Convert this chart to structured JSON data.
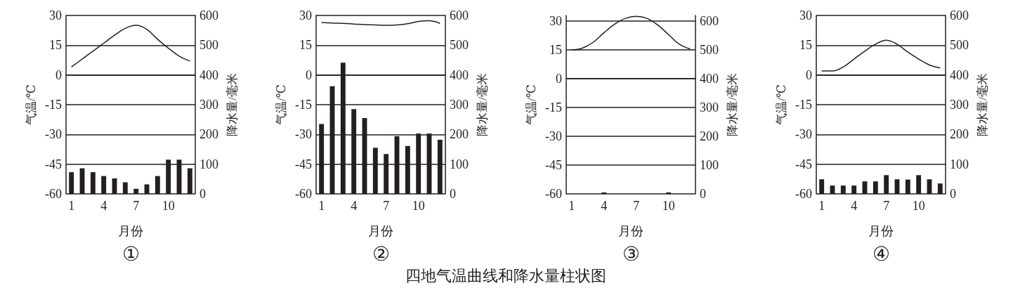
{
  "chart_data": [
    {
      "type": "bar",
      "title": "①",
      "xlabel": "月份",
      "ylabel": "气温/℃",
      "y2label": "降水量/毫米",
      "categories": [
        "1",
        null,
        null,
        "4",
        null,
        null,
        "7",
        null,
        null,
        "10",
        null,
        null
      ],
      "series": [
        {
          "type": "line",
          "color": "#231f20",
          "values": [
            4,
            8,
            12,
            16,
            20,
            23.5,
            25,
            23,
            18,
            13.5,
            9.5,
            7
          ]
        },
        {
          "axis": "y2",
          "color": "#231f20",
          "values": [
            73,
            86,
            73,
            60,
            52,
            39,
            17,
            32,
            60,
            115,
            115,
            86
          ]
        }
      ],
      "ylim": [
        -60,
        30
      ],
      "yticks": [
        -60,
        -45,
        -30,
        -15,
        0,
        15,
        30
      ],
      "y2lim": [
        0,
        600
      ],
      "y2ticks": [
        0,
        100,
        200,
        300,
        400,
        500,
        600
      ],
      "grid": "y",
      "marker": "none",
      "line_style": "solid",
      "annotations": [
        "四地气温曲线和降水量柱状图"
      ]
    },
    {
      "type": "bar",
      "title": "②",
      "xlabel": "月份",
      "ylabel": "气温/℃",
      "y2label": "降水量/毫米",
      "categories": [
        "1",
        null,
        null,
        "4",
        null,
        null,
        "7",
        null,
        null,
        "10",
        null,
        null
      ],
      "series": [
        {
          "type": "line",
          "color": "#231f20",
          "values": [
            26.5,
            26.2,
            26,
            25.7,
            25.4,
            25.2,
            25,
            25.2,
            25.8,
            27,
            27.3,
            26
          ]
        },
        {
          "axis": "y2",
          "color": "#231f20",
          "values": [
            235,
            362,
            441,
            285,
            255,
            155,
            134,
            194,
            161,
            203,
            203,
            182
          ]
        }
      ],
      "ylim": [
        -60,
        30
      ],
      "yticks": [
        -60,
        -45,
        -30,
        -15,
        0,
        15,
        30
      ],
      "y2lim": [
        0,
        600
      ],
      "y2ticks": [
        0,
        100,
        200,
        300,
        400,
        500,
        600
      ],
      "grid": "y",
      "marker": "none",
      "line_style": "solid"
    },
    {
      "type": "bar",
      "title": "③",
      "xlabel": "月份",
      "ylabel": "气温/℃",
      "y2label": "降水量/毫米",
      "categories": [
        "1",
        null,
        null,
        "4",
        null,
        null,
        "7",
        null,
        null,
        "10",
        null,
        null
      ],
      "series": [
        {
          "type": "line",
          "color": "#231f20",
          "values": [
            15,
            16,
            19,
            24,
            28.5,
            31.5,
            32.5,
            31.5,
            28,
            23,
            18,
            15.5
          ]
        },
        {
          "axis": "y2",
          "color": "#231f20",
          "values": [
            0,
            0,
            0,
            5,
            0,
            0,
            0,
            0,
            0,
            5,
            0,
            0
          ]
        }
      ],
      "ylim": [
        -60,
        33
      ],
      "yticks": [
        -60,
        -45,
        -30,
        -15,
        0,
        15,
        30
      ],
      "y2lim": [
        0,
        620
      ],
      "y2ticks": [
        0,
        100,
        200,
        300,
        400,
        500,
        600
      ],
      "grid": "y",
      "marker": "none",
      "line_style": "solid"
    },
    {
      "type": "bar",
      "title": "④",
      "xlabel": "月份",
      "ylabel": "气温/℃",
      "y2label": "降水量/毫米",
      "categories": [
        "1",
        null,
        null,
        "4",
        null,
        null,
        "7",
        null,
        null,
        "10",
        null,
        null
      ],
      "series": [
        {
          "type": "line",
          "color": "#231f20",
          "values": [
            2,
            2,
            4,
            8,
            12,
            15.5,
            17.5,
            15.5,
            11.5,
            8,
            5,
            3.5
          ]
        },
        {
          "axis": "y2",
          "color": "#231f20",
          "values": [
            49,
            28,
            28,
            28,
            42,
            42,
            63,
            49,
            48,
            63,
            49,
            35
          ]
        }
      ],
      "ylim": [
        -60,
        30
      ],
      "yticks": [
        -60,
        -45,
        -30,
        -15,
        0,
        15,
        30
      ],
      "y2lim": [
        0,
        600
      ],
      "y2ticks": [
        0,
        100,
        200,
        300,
        400,
        500,
        600
      ],
      "grid": "y",
      "marker": "none",
      "line_style": "solid"
    }
  ]
}
